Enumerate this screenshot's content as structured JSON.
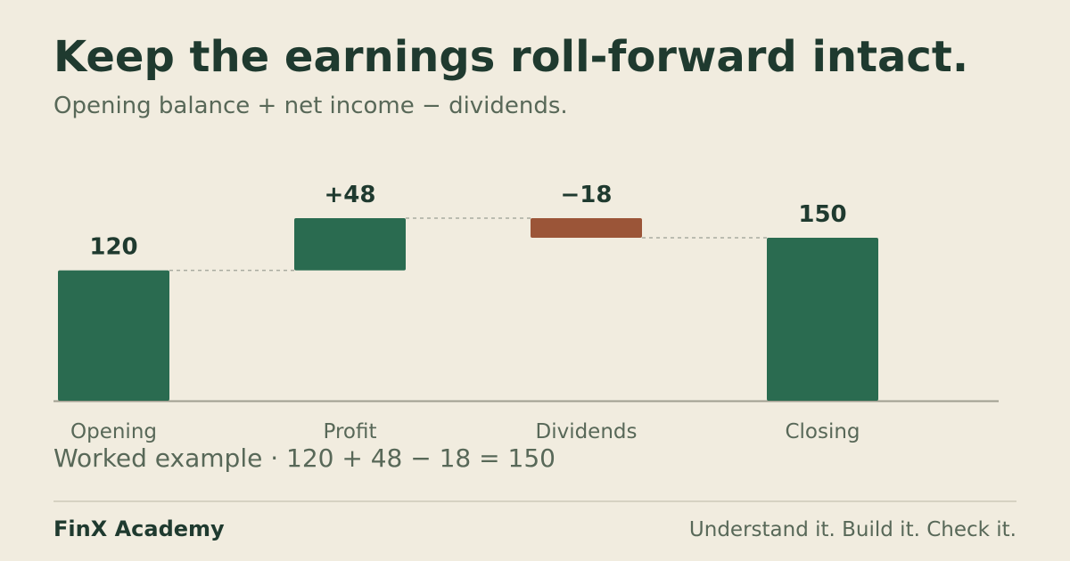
{
  "header": {
    "title": "Keep the earnings roll-forward intact.",
    "subtitle": "Opening balance + net income − dividends."
  },
  "chart_data": {
    "type": "bar",
    "subtype": "waterfall",
    "categories": [
      "Opening",
      "Profit",
      "Dividends",
      "Closing"
    ],
    "values": [
      120,
      48,
      -18,
      150
    ],
    "kinds": [
      "total",
      "delta",
      "delta",
      "total"
    ],
    "data_labels": [
      "120",
      "+48",
      "−18",
      "150"
    ],
    "ylim": [
      0,
      170
    ],
    "grid": false,
    "connectors": true,
    "colors": {
      "positive": "#2a6b50",
      "negative": "#9b5538",
      "total": "#2a6b50",
      "connector": "#a9aba0",
      "baseline": "#a09e90",
      "label": "#1f3a2f",
      "category_label": "#586858"
    }
  },
  "note": {
    "worked_example": "Worked example · 120 + 48 − 18 = 150"
  },
  "footer": {
    "brand": "FinX Academy",
    "tagline": "Understand it. Build it. Check it."
  }
}
